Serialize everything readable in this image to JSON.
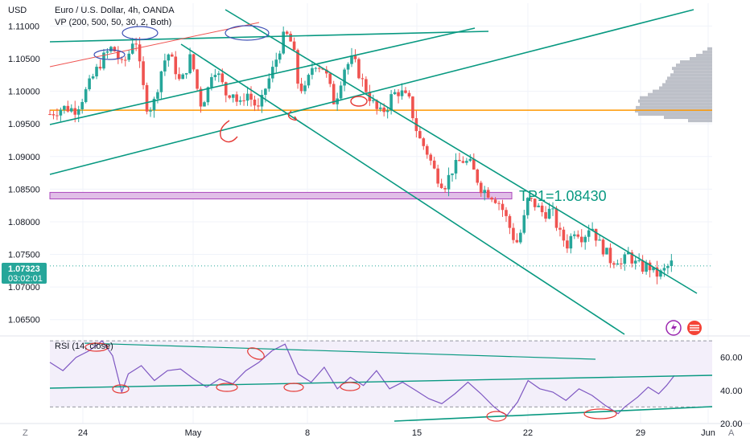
{
  "header": {
    "currency_label": "USD",
    "symbol_title": "Euro / U.S. Dollar, 4h, OANDA",
    "vp_label": "VP (200, 500, 50, 30, 2, Both)",
    "rsi_label": "RSI (14, close)"
  },
  "current_price": {
    "value": "1.07323",
    "countdown": "03:02:01"
  },
  "annotation": {
    "tp_text": "TP1=1.08430"
  },
  "footer": {
    "left_button": "Z",
    "right_button": "A"
  },
  "colors": {
    "up": "#26a69a",
    "down": "#ef5350",
    "trendline": "#089981",
    "hline": "#ff9800",
    "zone": "#e1bee7",
    "zone_border": "#ab47bc",
    "rsi": "#7e57c2",
    "rsi_band": "#f3effa",
    "badge": "#26a69a",
    "marker": "#e53935",
    "circle_blue": "#3f51b5",
    "volume_profile": "#b2b5be"
  },
  "chart_data": {
    "type": "candlestick",
    "title": "Euro / U.S. Dollar, 4h, OANDA",
    "ylabel": "USD",
    "ylim": [
      1.0625,
      1.1135
    ],
    "y_ticks": [
      "1.11000",
      "1.10500",
      "1.10000",
      "1.09500",
      "1.09000",
      "1.08500",
      "1.08000",
      "1.07500",
      "1.07000",
      "1.06500"
    ],
    "x_ticks": [
      "24",
      "May",
      "8",
      "15",
      "22",
      "29",
      "Jun"
    ],
    "current_price": 1.07323,
    "horizontal_line": 1.0971,
    "zone": [
      1.0835,
      1.0845
    ],
    "tp_level": 1.0843,
    "close_path": [
      [
        0,
        1.0965
      ],
      [
        10,
        1.0975
      ],
      [
        20,
        1.0972
      ],
      [
        25,
        1.099
      ],
      [
        35,
        1.103
      ],
      [
        42,
        1.1055
      ],
      [
        48,
        1.1068
      ],
      [
        55,
        1.104
      ],
      [
        60,
        1.1055
      ],
      [
        65,
        1.109
      ],
      [
        70,
        1.102
      ],
      [
        75,
        1.097
      ],
      [
        80,
        1.0985
      ],
      [
        85,
        1.103
      ],
      [
        90,
        1.106
      ],
      [
        95,
        1.104
      ],
      [
        100,
        1.101
      ],
      [
        108,
        1.1055
      ],
      [
        115,
        1.098
      ],
      [
        120,
        1.0995
      ],
      [
        125,
        1.104
      ],
      [
        130,
        1.102
      ],
      [
        135,
        1.0995
      ],
      [
        140,
        1.1
      ],
      [
        145,
        1.0975
      ],
      [
        150,
        1.1
      ],
      [
        155,
        1.0985
      ],
      [
        160,
        1.097
      ],
      [
        165,
        1.1005
      ],
      [
        170,
        1.103
      ],
      [
        175,
        1.106
      ],
      [
        180,
        1.109
      ],
      [
        186,
        1.107
      ],
      [
        190,
        1.101
      ],
      [
        195,
        1.1
      ],
      [
        202,
        1.1045
      ],
      [
        210,
        1.1035
      ],
      [
        218,
        1.098
      ],
      [
        225,
        1.1035
      ],
      [
        232,
        1.105
      ],
      [
        238,
        1.102
      ],
      [
        245,
        1.099
      ],
      [
        252,
        1.0965
      ],
      [
        258,
        1.0975
      ],
      [
        262,
        1.0995
      ],
      [
        268,
        1.1
      ],
      [
        275,
        1.0985
      ],
      [
        282,
        1.093
      ],
      [
        288,
        1.091
      ],
      [
        296,
        1.087
      ],
      [
        302,
        1.0855
      ],
      [
        308,
        1.088
      ],
      [
        315,
        1.0895
      ],
      [
        322,
        1.0888
      ],
      [
        330,
        1.0852
      ],
      [
        335,
        1.0845
      ],
      [
        340,
        1.0838
      ],
      [
        345,
        1.0826
      ],
      [
        350,
        1.0802
      ],
      [
        355,
        1.0775
      ],
      [
        358,
        1.0768
      ],
      [
        362,
        1.0795
      ],
      [
        366,
        1.0835
      ],
      [
        372,
        1.0825
      ],
      [
        378,
        1.0812
      ],
      [
        384,
        1.0818
      ],
      [
        390,
        1.0782
      ],
      [
        396,
        1.0765
      ],
      [
        402,
        1.079
      ],
      [
        408,
        1.0775
      ],
      [
        414,
        1.0797
      ],
      [
        420,
        1.0768
      ],
      [
        426,
        1.0752
      ],
      [
        430,
        1.0738
      ],
      [
        434,
        1.0745
      ],
      [
        438,
        1.0732
      ],
      [
        442,
        1.0752
      ],
      [
        448,
        1.0736
      ],
      [
        454,
        1.0729
      ],
      [
        458,
        1.0734
      ],
      [
        462,
        1.0722
      ],
      [
        466,
        1.0718
      ],
      [
        470,
        1.0725
      ],
      [
        474,
        1.0733
      ],
      [
        478,
        1.074
      ]
    ],
    "rsi": {
      "label": "RSI (14, close)",
      "ylim": [
        20,
        72
      ],
      "levels": [
        70,
        30
      ],
      "y_ticks": [
        "60.00",
        "40.00",
        "20.00"
      ],
      "points": [
        [
          0,
          57
        ],
        [
          10,
          52
        ],
        [
          20,
          60
        ],
        [
          30,
          64
        ],
        [
          40,
          70
        ],
        [
          48,
          61
        ],
        [
          55,
          39
        ],
        [
          60,
          50
        ],
        [
          70,
          55
        ],
        [
          80,
          46
        ],
        [
          90,
          52
        ],
        [
          100,
          53
        ],
        [
          110,
          47
        ],
        [
          120,
          42
        ],
        [
          130,
          47
        ],
        [
          140,
          44
        ],
        [
          150,
          52
        ],
        [
          160,
          57
        ],
        [
          170,
          64
        ],
        [
          180,
          68
        ],
        [
          190,
          50
        ],
        [
          200,
          45
        ],
        [
          210,
          54
        ],
        [
          220,
          41
        ],
        [
          230,
          48
        ],
        [
          240,
          43
        ],
        [
          250,
          52
        ],
        [
          260,
          41
        ],
        [
          270,
          45
        ],
        [
          280,
          40
        ],
        [
          290,
          35
        ],
        [
          300,
          32
        ],
        [
          310,
          38
        ],
        [
          320,
          45
        ],
        [
          330,
          38
        ],
        [
          340,
          30
        ],
        [
          345,
          27
        ],
        [
          350,
          25
        ],
        [
          358,
          33
        ],
        [
          366,
          46
        ],
        [
          375,
          41
        ],
        [
          385,
          39
        ],
        [
          395,
          34
        ],
        [
          405,
          41
        ],
        [
          415,
          37
        ],
        [
          425,
          31
        ],
        [
          435,
          26
        ],
        [
          440,
          30
        ],
        [
          450,
          36
        ],
        [
          458,
          42
        ],
        [
          466,
          38
        ],
        [
          472,
          43
        ],
        [
          478,
          49
        ]
      ]
    }
  }
}
